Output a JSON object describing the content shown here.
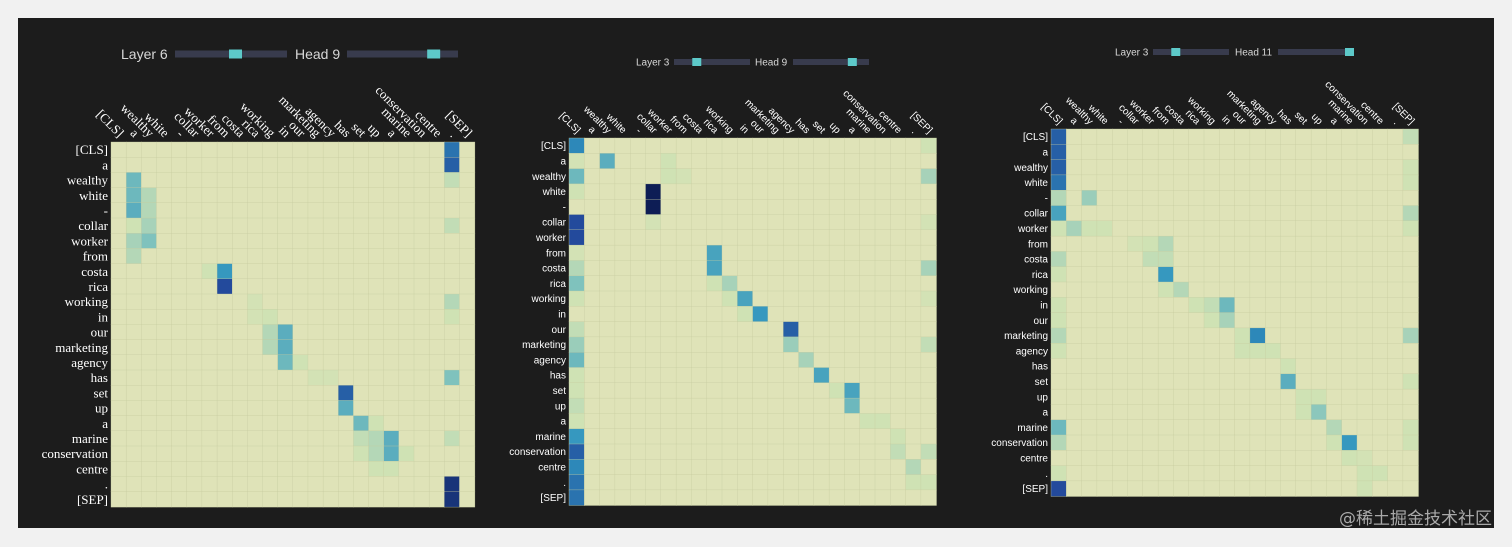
{
  "tokens": [
    "[CLS]",
    "a",
    "wealthy",
    "white",
    "-",
    "collar",
    "worker",
    "from",
    "costa",
    "rica",
    "working",
    "in",
    "our",
    "marketing",
    "agency",
    "has",
    "set",
    "up",
    "a",
    "marine",
    "conservation",
    "centre",
    ".",
    "[SEP]"
  ],
  "colors": {
    "background": "#1c1c1c",
    "cell_base": "#dfe3b8",
    "cell_light": "#cfe2b4",
    "cell_mid": "#7fc2bd",
    "cell_teal": "#2f94bf",
    "cell_blue": "#234a9c",
    "cell_navy": "#0d1d55",
    "grid_line": "#c7cca0",
    "slider_track": "#383b4d",
    "slider_thumb": "#5dc9c9",
    "label_text": "#ffffff",
    "control_text": "#d8d8d8"
  },
  "watermark": "@稀土掘金技术社区",
  "chart_data": [
    {
      "type": "heatmap",
      "controls": {
        "layer_label": "Layer 6",
        "layer_value": 6,
        "layer_range": [
          0,
          11
        ],
        "head_label": "Head 9",
        "head_value": 9,
        "head_range": [
          0,
          11
        ]
      },
      "x_labels": "tokens",
      "y_labels": "tokens",
      "value_range": [
        0,
        1
      ],
      "cells": [
        [
          0,
          22,
          0.8
        ],
        [
          1,
          22,
          0.85
        ],
        [
          2,
          22,
          0.25
        ],
        [
          5,
          22,
          0.25
        ],
        [
          10,
          22,
          0.3
        ],
        [
          11,
          22,
          0.2
        ],
        [
          15,
          22,
          0.5
        ],
        [
          19,
          22,
          0.25
        ],
        [
          22,
          22,
          0.95
        ],
        [
          23,
          22,
          0.95
        ],
        [
          2,
          1,
          0.55
        ],
        [
          3,
          1,
          0.55
        ],
        [
          4,
          1,
          0.6
        ],
        [
          5,
          1,
          0.2
        ],
        [
          6,
          1,
          0.35
        ],
        [
          7,
          1,
          0.3
        ],
        [
          3,
          2,
          0.3
        ],
        [
          4,
          2,
          0.3
        ],
        [
          5,
          2,
          0.35
        ],
        [
          6,
          2,
          0.5
        ],
        [
          8,
          7,
          0.7
        ],
        [
          9,
          7,
          0.9
        ],
        [
          8,
          6,
          0.2
        ],
        [
          10,
          9,
          0.15
        ],
        [
          11,
          9,
          0.15
        ],
        [
          11,
          10,
          0.2
        ],
        [
          12,
          10,
          0.3
        ],
        [
          12,
          11,
          0.6
        ],
        [
          13,
          11,
          0.6
        ],
        [
          14,
          11,
          0.55
        ],
        [
          12,
          10,
          0.25
        ],
        [
          13,
          10,
          0.3
        ],
        [
          14,
          12,
          0.2
        ],
        [
          16,
          15,
          0.85
        ],
        [
          17,
          15,
          0.6
        ],
        [
          15,
          14,
          0.15
        ],
        [
          15,
          13,
          0.15
        ],
        [
          18,
          16,
          0.55
        ],
        [
          19,
          16,
          0.25
        ],
        [
          19,
          17,
          0.3
        ],
        [
          20,
          17,
          0.3
        ],
        [
          21,
          17,
          0.2
        ],
        [
          19,
          18,
          0.6
        ],
        [
          20,
          18,
          0.6
        ],
        [
          21,
          18,
          0.2
        ],
        [
          20,
          16,
          0.2
        ],
        [
          18,
          17,
          0.2
        ],
        [
          20,
          19,
          0.2
        ]
      ]
    },
    {
      "type": "heatmap",
      "controls": {
        "layer_label": "Layer 3",
        "layer_value": 3,
        "layer_range": [
          0,
          11
        ],
        "head_label": "Head 9",
        "head_value": 9,
        "head_range": [
          0,
          11
        ]
      },
      "x_labels": "tokens",
      "y_labels": "tokens",
      "value_range": [
        0,
        1
      ],
      "cells": [
        [
          0,
          0,
          0.75
        ],
        [
          1,
          0,
          0.15
        ],
        [
          2,
          0,
          0.55
        ],
        [
          3,
          0,
          0.2
        ],
        [
          5,
          0,
          0.9
        ],
        [
          6,
          0,
          0.9
        ],
        [
          7,
          0,
          0.15
        ],
        [
          8,
          0,
          0.3
        ],
        [
          9,
          0,
          0.5
        ],
        [
          10,
          0,
          0.2
        ],
        [
          12,
          0,
          0.25
        ],
        [
          13,
          0,
          0.4
        ],
        [
          14,
          0,
          0.55
        ],
        [
          15,
          0,
          0.2
        ],
        [
          16,
          0,
          0.2
        ],
        [
          17,
          0,
          0.25
        ],
        [
          18,
          0,
          0.2
        ],
        [
          19,
          0,
          0.7
        ],
        [
          20,
          0,
          0.85
        ],
        [
          21,
          0,
          0.75
        ],
        [
          22,
          0,
          0.8
        ],
        [
          23,
          0,
          0.8
        ],
        [
          1,
          2,
          0.6
        ],
        [
          1,
          6,
          0.2
        ],
        [
          2,
          6,
          0.2
        ],
        [
          2,
          7,
          0.15
        ],
        [
          3,
          5,
          1.0
        ],
        [
          4,
          5,
          1.0
        ],
        [
          5,
          5,
          0.15
        ],
        [
          7,
          9,
          0.65
        ],
        [
          8,
          9,
          0.65
        ],
        [
          9,
          9,
          0.2
        ],
        [
          9,
          10,
          0.35
        ],
        [
          10,
          10,
          0.2
        ],
        [
          10,
          11,
          0.65
        ],
        [
          11,
          12,
          0.7
        ],
        [
          11,
          11,
          0.2
        ],
        [
          12,
          14,
          0.85
        ],
        [
          13,
          14,
          0.4
        ],
        [
          14,
          15,
          0.35
        ],
        [
          15,
          16,
          0.65
        ],
        [
          16,
          17,
          0.2
        ],
        [
          16,
          18,
          0.65
        ],
        [
          17,
          18,
          0.55
        ],
        [
          18,
          19,
          0.2
        ],
        [
          18,
          20,
          0.2
        ],
        [
          19,
          21,
          0.2
        ],
        [
          20,
          21,
          0.25
        ],
        [
          21,
          22,
          0.3
        ],
        [
          22,
          22,
          0.2
        ],
        [
          22,
          23,
          0.2
        ],
        [
          0,
          23,
          0.2
        ],
        [
          2,
          23,
          0.35
        ],
        [
          8,
          23,
          0.35
        ],
        [
          13,
          23,
          0.25
        ],
        [
          20,
          23,
          0.25
        ],
        [
          5,
          23,
          0.15
        ],
        [
          10,
          23,
          0.15
        ]
      ]
    },
    {
      "type": "heatmap",
      "controls": {
        "layer_label": "Layer 3",
        "layer_value": 3,
        "layer_range": [
          0,
          11
        ],
        "head_label": "Head 11",
        "head_value": 11,
        "head_range": [
          0,
          11
        ]
      },
      "x_labels": "tokens",
      "y_labels": "tokens",
      "value_range": [
        0,
        1
      ],
      "cells": [
        [
          0,
          0,
          0.85
        ],
        [
          1,
          0,
          0.85
        ],
        [
          2,
          0,
          0.85
        ],
        [
          3,
          0,
          0.8
        ],
        [
          4,
          0,
          0.3
        ],
        [
          5,
          0,
          0.65
        ],
        [
          6,
          0,
          0.2
        ],
        [
          8,
          0,
          0.3
        ],
        [
          9,
          0,
          0.2
        ],
        [
          11,
          0,
          0.2
        ],
        [
          12,
          0,
          0.2
        ],
        [
          13,
          0,
          0.3
        ],
        [
          14,
          0,
          0.2
        ],
        [
          19,
          0,
          0.55
        ],
        [
          20,
          0,
          0.3
        ],
        [
          22,
          0,
          0.2
        ],
        [
          23,
          0,
          0.9
        ],
        [
          0,
          23,
          0.25
        ],
        [
          2,
          23,
          0.2
        ],
        [
          3,
          23,
          0.2
        ],
        [
          5,
          23,
          0.3
        ],
        [
          6,
          23,
          0.2
        ],
        [
          13,
          23,
          0.35
        ],
        [
          16,
          23,
          0.2
        ],
        [
          19,
          23,
          0.2
        ],
        [
          20,
          23,
          0.2
        ],
        [
          4,
          2,
          0.4
        ],
        [
          6,
          1,
          0.35
        ],
        [
          6,
          2,
          0.2
        ],
        [
          6,
          3,
          0.2
        ],
        [
          7,
          6,
          0.2
        ],
        [
          7,
          5,
          0.15
        ],
        [
          7,
          7,
          0.3
        ],
        [
          8,
          6,
          0.25
        ],
        [
          8,
          7,
          0.25
        ],
        [
          9,
          7,
          0.7
        ],
        [
          10,
          7,
          0.2
        ],
        [
          10,
          8,
          0.3
        ],
        [
          11,
          9,
          0.2
        ],
        [
          11,
          10,
          0.25
        ],
        [
          11,
          11,
          0.55
        ],
        [
          12,
          11,
          0.35
        ],
        [
          12,
          10,
          0.2
        ],
        [
          13,
          12,
          0.2
        ],
        [
          13,
          13,
          0.75
        ],
        [
          14,
          12,
          0.2
        ],
        [
          14,
          13,
          0.2
        ],
        [
          14,
          14,
          0.2
        ],
        [
          15,
          15,
          0.2
        ],
        [
          16,
          15,
          0.6
        ],
        [
          17,
          16,
          0.2
        ],
        [
          18,
          16,
          0.2
        ],
        [
          18,
          17,
          0.45
        ],
        [
          17,
          17,
          0.2
        ],
        [
          19,
          18,
          0.3
        ],
        [
          20,
          18,
          0.2
        ],
        [
          20,
          19,
          0.7
        ],
        [
          21,
          19,
          0.2
        ],
        [
          21,
          20,
          0.15
        ],
        [
          22,
          20,
          0.2
        ],
        [
          23,
          20,
          0.2
        ],
        [
          22,
          21,
          0.2
        ]
      ]
    }
  ]
}
